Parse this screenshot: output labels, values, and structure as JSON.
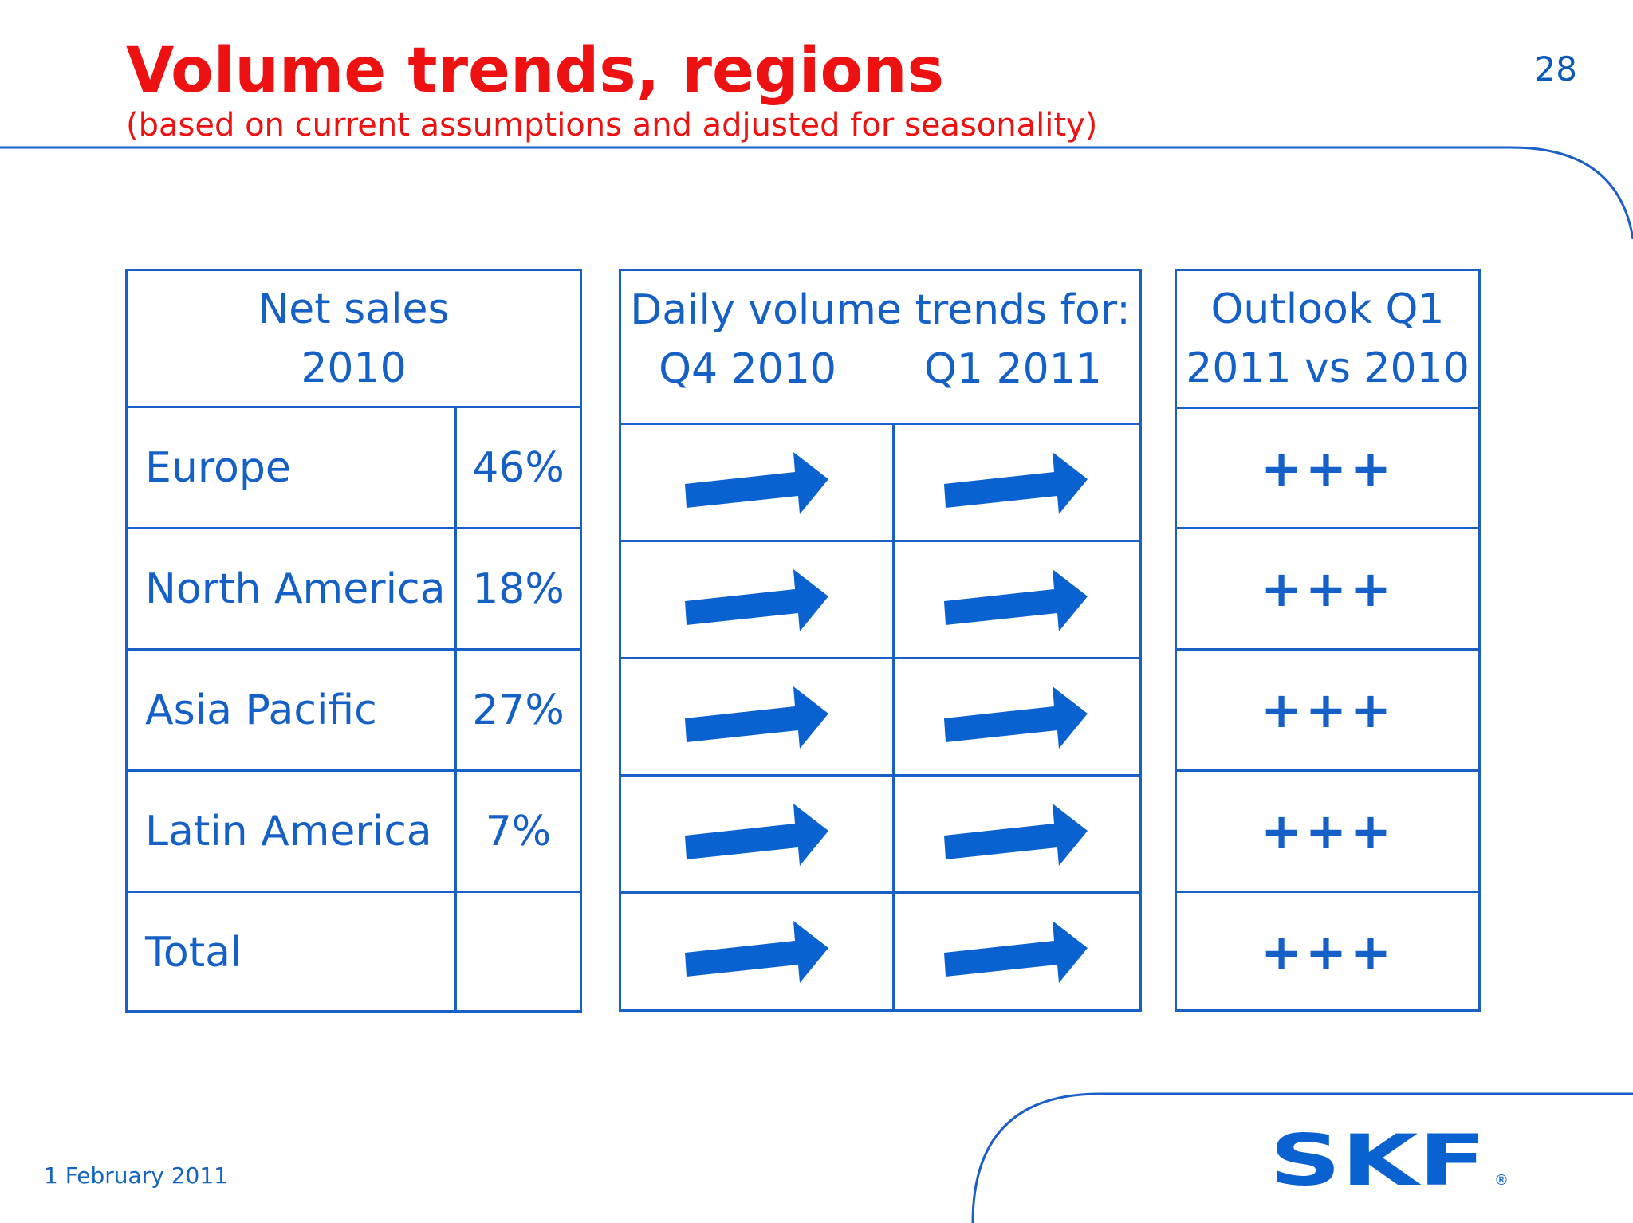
{
  "slide": {
    "title": "Volume trends, regions",
    "subtitle": "(based on current assumptions and adjusted for seasonality)",
    "page_number": "28",
    "date": "1 February 2011"
  },
  "net_sales_table": {
    "header_line1": "Net sales",
    "header_line2": "2010",
    "rows": [
      {
        "region": "Europe",
        "share": "46%"
      },
      {
        "region": "North America",
        "share": "18%"
      },
      {
        "region": "Asia Pacific",
        "share": "27%"
      },
      {
        "region": "Latin America",
        "share": "7%"
      },
      {
        "region": "Total",
        "share": ""
      }
    ]
  },
  "trends_table": {
    "header_line1": "Daily volume trends for:",
    "col1": "Q4 2010",
    "col2": "Q1 2011",
    "arrow_icon": "right-arrow-icon",
    "rows": [
      {
        "q4_2010": "right-arrow-icon",
        "q1_2011": "right-arrow-icon"
      },
      {
        "q4_2010": "right-arrow-icon",
        "q1_2011": "right-arrow-icon"
      },
      {
        "q4_2010": "right-arrow-icon",
        "q1_2011": "right-arrow-icon"
      },
      {
        "q4_2010": "right-arrow-icon",
        "q1_2011": "right-arrow-icon"
      },
      {
        "q4_2010": "right-arrow-icon",
        "q1_2011": "right-arrow-icon"
      }
    ]
  },
  "outlook_table": {
    "header_line1": "Outlook Q1",
    "header_line2": "2011 vs 2010",
    "rows": [
      "+++",
      "+++",
      "+++",
      "+++",
      "+++"
    ]
  },
  "logo": {
    "text": "SKF",
    "mark": "®"
  },
  "colors": {
    "title": "#ee1111",
    "text_blue": "#1560c6",
    "rule_blue": "#1a5fc8",
    "arrow_blue": "#0a62d0"
  }
}
